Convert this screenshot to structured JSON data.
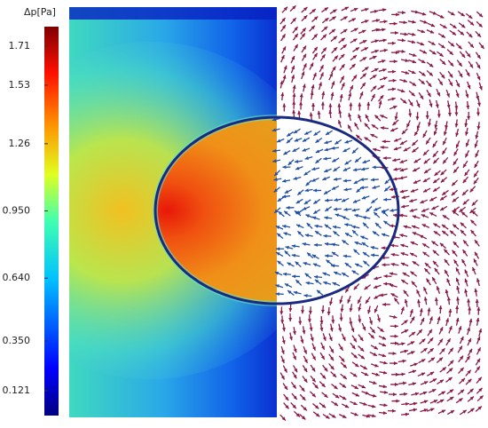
{
  "chart_data": {
    "type": "field",
    "colorbar_title": "Δp[Pa]",
    "clim": [
      0.006,
      1.8
    ],
    "cticks": [
      0.121,
      {
        "value": 0.35,
        "label": "0.350"
      },
      {
        "value": 0.64,
        "label": "0.640"
      },
      {
        "value": 0.95,
        "label": "0.950"
      },
      1.26,
      1.53,
      1.71
    ]
  }
}
